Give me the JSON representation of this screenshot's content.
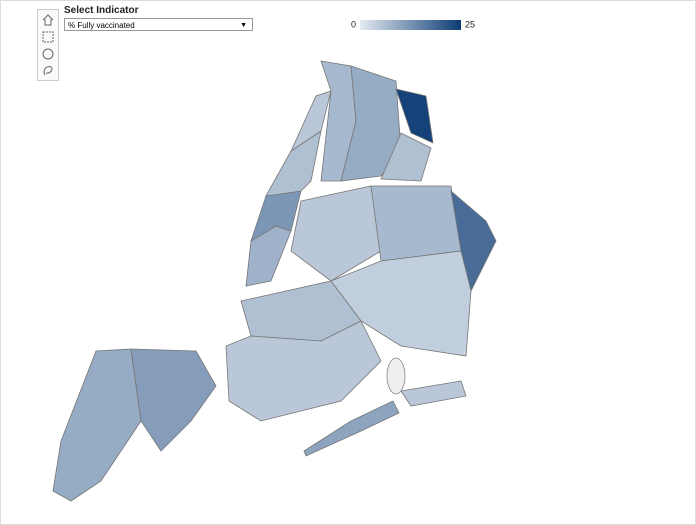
{
  "header": {
    "title": "Select Indicator",
    "selected_indicator": "% Fully vaccinated"
  },
  "legend": {
    "min": 0,
    "max": 25,
    "color_min": "#e4eaf1",
    "color_max": "#0b3b74"
  },
  "regions": [
    9,
    11,
    8,
    12,
    6,
    5,
    7,
    9,
    24,
    6,
    5,
    7,
    18,
    4,
    6,
    5,
    10,
    5
  ]
}
